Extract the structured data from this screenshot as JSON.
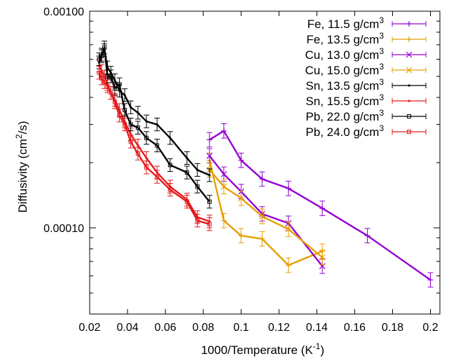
{
  "chart_data": {
    "type": "line",
    "title": "",
    "xlabel": "1000/Temperature (K",
    "xlabel_sup": "-1",
    "xlabel_suffix": ")",
    "ylabel": "Diffusivity (cm",
    "ylabel_sup": "2",
    "ylabel_suffix": "/s)",
    "xlim": [
      0.02,
      0.205
    ],
    "ylim": [
      4e-05,
      0.001
    ],
    "y_scale": "log",
    "grid": false,
    "legend_position": "top-right",
    "x_ticks": [
      {
        "value": 0.02,
        "label": "0.02"
      },
      {
        "value": 0.04,
        "label": "0.04"
      },
      {
        "value": 0.06,
        "label": "0.06"
      },
      {
        "value": 0.08,
        "label": "0.08"
      },
      {
        "value": 0.1,
        "label": "0.1"
      },
      {
        "value": 0.12,
        "label": "0.12"
      },
      {
        "value": 0.14,
        "label": "0.14"
      },
      {
        "value": 0.16,
        "label": "0.16"
      },
      {
        "value": 0.18,
        "label": "0.18"
      },
      {
        "value": 0.2,
        "label": "0.2"
      }
    ],
    "y_ticks": [
      {
        "value": 0.0001,
        "label": "0.00010"
      },
      {
        "value": 0.001,
        "label": "0.00100"
      }
    ],
    "series": [
      {
        "name": "Fe, 11.5 g/cm",
        "sup": "3",
        "color": "#9400d3",
        "marker": "plus",
        "x": [
          0.0833,
          0.0909,
          0.1,
          0.1111,
          0.125,
          0.1429,
          0.1667,
          0.2
        ],
        "y": [
          0.000255,
          0.00028,
          0.000205,
          0.000168,
          0.000152,
          0.000123,
          9.2e-05,
          5.75e-05
        ],
        "err": 0.08
      },
      {
        "name": "Fe, 13.5 g/cm",
        "sup": "3",
        "color": "#e69f00",
        "marker": "plus",
        "x": [
          0.0833,
          0.0909,
          0.1,
          0.1111,
          0.125,
          0.1429
        ],
        "y": [
          0.000205,
          0.000108,
          9.2e-05,
          8.9e-05,
          6.72e-05,
          7.8e-05
        ],
        "err": 0.08
      },
      {
        "name": "Cu, 13.0 g/cm",
        "sup": "3",
        "color": "#9400d3",
        "marker": "cross",
        "x": [
          0.0833,
          0.0909,
          0.1,
          0.1111,
          0.125,
          0.1429
        ],
        "y": [
          0.000215,
          0.000177,
          0.000147,
          0.000116,
          0.000105,
          6.65e-05
        ],
        "err": 0.08
      },
      {
        "name": "Cu, 15.0 g/cm",
        "sup": "3",
        "color": "#e69f00",
        "marker": "cross",
        "x": [
          0.0833,
          0.0909,
          0.1,
          0.1111,
          0.125,
          0.1429
        ],
        "y": [
          0.000185,
          0.000155,
          0.000137,
          0.000113,
          9.85e-05,
          7.3e-05
        ],
        "err": 0.08
      },
      {
        "name": "Sn, 13.5 g/cm",
        "sup": "3",
        "color": "#000000",
        "marker": "dot",
        "x": [
          0.025,
          0.0263,
          0.0278,
          0.0294,
          0.0312,
          0.0333,
          0.0357,
          0.0385,
          0.0417,
          0.0455,
          0.05,
          0.0556,
          0.0625,
          0.0714,
          0.0769,
          0.0833
        ],
        "y": [
          0.00058,
          0.00063,
          0.00066,
          0.00055,
          0.00052,
          0.00048,
          0.00043,
          0.00041,
          0.00036,
          0.00034,
          0.00031,
          0.0003,
          0.00026,
          0.00021,
          0.000185,
          0.000175
        ],
        "err": 0.07
      },
      {
        "name": "Sn, 15.5 g/cm",
        "sup": "3",
        "color": "#e41a1c",
        "marker": "dot",
        "x": [
          0.025,
          0.0263,
          0.0278,
          0.0294,
          0.0312,
          0.0333,
          0.0357,
          0.0385,
          0.0417,
          0.0455,
          0.05,
          0.0556,
          0.0625,
          0.0714,
          0.0769,
          0.0833
        ],
        "y": [
          0.00056,
          0.00053,
          0.0005,
          0.00046,
          0.00042,
          0.00039,
          0.00035,
          0.00031,
          0.00027,
          0.00024,
          0.00021,
          0.00018,
          0.000155,
          0.000135,
          0.000112,
          0.000107
        ],
        "err": 0.07
      },
      {
        "name": "Pb, 22.0 g/cm",
        "sup": "3",
        "color": "#000000",
        "marker": "square",
        "x": [
          0.025,
          0.0263,
          0.0278,
          0.0294,
          0.0312,
          0.0333,
          0.0357,
          0.0385,
          0.0417,
          0.0455,
          0.05,
          0.0556,
          0.0625,
          0.0714,
          0.0769,
          0.0833
        ],
        "y": [
          0.0006,
          0.00062,
          0.00068,
          0.0005,
          0.0005,
          0.00044,
          0.00046,
          0.00035,
          0.0003,
          0.00029,
          0.00026,
          0.00024,
          0.000195,
          0.00018,
          0.000155,
          0.000132
        ],
        "err": 0.07
      },
      {
        "name": "Pb, 24.0 g/cm",
        "sup": "3",
        "color": "#e41a1c",
        "marker": "square",
        "x": [
          0.025,
          0.0263,
          0.0278,
          0.0294,
          0.0312,
          0.0333,
          0.0357,
          0.0385,
          0.0417,
          0.0455,
          0.05,
          0.0556,
          0.0625,
          0.0714,
          0.0769,
          0.0833
        ],
        "y": [
          0.00052,
          0.00049,
          0.00047,
          0.00045,
          0.00042,
          0.00038,
          0.00033,
          0.0003,
          0.00025,
          0.00022,
          0.00019,
          0.000172,
          0.00015,
          0.000132,
          0.000108,
          0.000104
        ],
        "err": 0.07
      }
    ]
  }
}
